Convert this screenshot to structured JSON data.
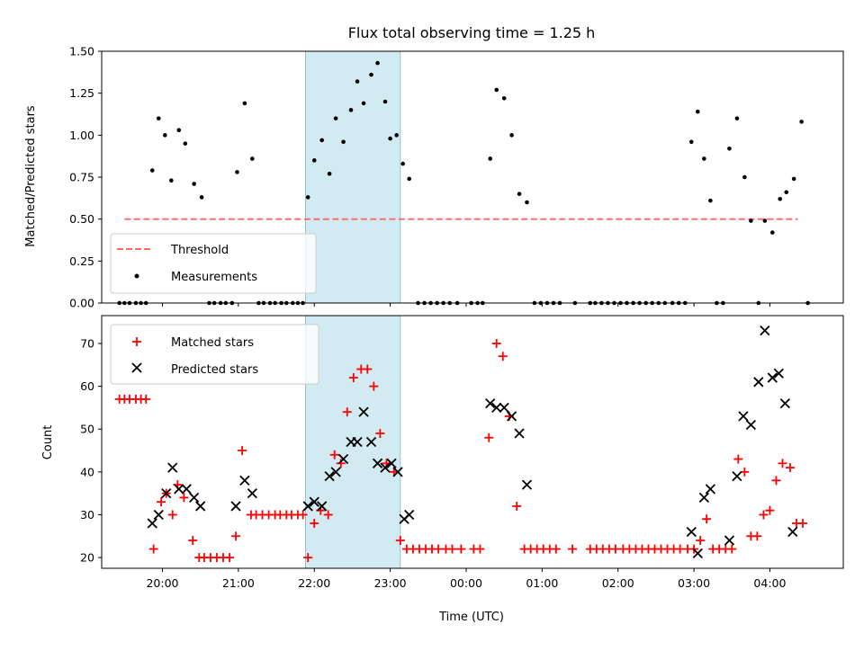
{
  "chart_data": [
    {
      "type": "scatter",
      "title": "Flux total observing time = 1.25 h",
      "ylabel": "Matched/Predicted stars",
      "ylim": [
        0,
        1.5
      ],
      "yticks": [
        "0.00",
        "0.25",
        "0.50",
        "0.75",
        "1.00",
        "1.25",
        "1.50"
      ],
      "xlim": [
        "19:12",
        "04:58"
      ],
      "highlight_span": {
        "from": "21:53",
        "to": "23:08",
        "color": "#add8e6"
      },
      "threshold": {
        "value": 0.5,
        "from": "19:30",
        "to": "04:22",
        "color": "#ff6666",
        "style": "dashed"
      },
      "legend": {
        "position": "lower-left",
        "entries": [
          "Threshold",
          "Measurements"
        ]
      },
      "series": [
        {
          "name": "Measurements",
          "marker": "dot",
          "color": "#000000",
          "points": [
            [
              "19:26",
              0
            ],
            [
              "19:30",
              0
            ],
            [
              "19:34",
              0
            ],
            [
              "19:39",
              0
            ],
            [
              "19:43",
              0
            ],
            [
              "19:47",
              0
            ],
            [
              "19:52",
              0.79
            ],
            [
              "19:57",
              1.1
            ],
            [
              "20:02",
              1.0
            ],
            [
              "20:07",
              0.73
            ],
            [
              "20:13",
              1.03
            ],
            [
              "20:18",
              0.95
            ],
            [
              "20:25",
              0.71
            ],
            [
              "20:31",
              0.63
            ],
            [
              "20:37",
              0
            ],
            [
              "20:41",
              0
            ],
            [
              "20:46",
              0
            ],
            [
              "20:50",
              0
            ],
            [
              "20:55",
              0
            ],
            [
              "20:59",
              0.78
            ],
            [
              "21:05",
              1.19
            ],
            [
              "21:11",
              0.86
            ],
            [
              "21:16",
              0
            ],
            [
              "21:20",
              0
            ],
            [
              "21:25",
              0
            ],
            [
              "21:29",
              0
            ],
            [
              "21:34",
              0
            ],
            [
              "21:38",
              0
            ],
            [
              "21:43",
              0
            ],
            [
              "21:47",
              0
            ],
            [
              "21:51",
              0
            ],
            [
              "21:55",
              0.63
            ],
            [
              "22:00",
              0.85
            ],
            [
              "22:06",
              0.97
            ],
            [
              "22:12",
              0.77
            ],
            [
              "22:17",
              1.1
            ],
            [
              "22:23",
              0.96
            ],
            [
              "22:29",
              1.15
            ],
            [
              "22:34",
              1.32
            ],
            [
              "22:39",
              1.19
            ],
            [
              "22:45",
              1.36
            ],
            [
              "22:50",
              1.43
            ],
            [
              "22:56",
              1.2
            ],
            [
              "23:00",
              0.98
            ],
            [
              "23:05",
              1.0
            ],
            [
              "23:10",
              0.83
            ],
            [
              "23:15",
              0.74
            ],
            [
              "23:22",
              0
            ],
            [
              "23:27",
              0
            ],
            [
              "23:32",
              0
            ],
            [
              "23:37",
              0
            ],
            [
              "23:42",
              0
            ],
            [
              "23:47",
              0
            ],
            [
              "23:53",
              0
            ],
            [
              "00:04",
              0
            ],
            [
              "00:09",
              0
            ],
            [
              "00:13",
              0
            ],
            [
              "00:19",
              0.86
            ],
            [
              "00:24",
              1.27
            ],
            [
              "00:30",
              1.22
            ],
            [
              "00:36",
              1.0
            ],
            [
              "00:42",
              0.65
            ],
            [
              "00:48",
              0.6
            ],
            [
              "00:54",
              0
            ],
            [
              "00:59",
              0
            ],
            [
              "01:04",
              0
            ],
            [
              "01:09",
              0
            ],
            [
              "01:14",
              0
            ],
            [
              "01:26",
              0
            ],
            [
              "01:38",
              0
            ],
            [
              "01:42",
              0
            ],
            [
              "01:47",
              0
            ],
            [
              "01:52",
              0
            ],
            [
              "01:57",
              0
            ],
            [
              "02:02",
              0
            ],
            [
              "02:07",
              0
            ],
            [
              "02:12",
              0
            ],
            [
              "02:17",
              0
            ],
            [
              "02:22",
              0
            ],
            [
              "02:27",
              0
            ],
            [
              "02:32",
              0
            ],
            [
              "02:37",
              0
            ],
            [
              "02:43",
              0
            ],
            [
              "02:48",
              0
            ],
            [
              "02:53",
              0
            ],
            [
              "02:58",
              0.96
            ],
            [
              "03:03",
              1.14
            ],
            [
              "03:08",
              0.86
            ],
            [
              "03:13",
              0.61
            ],
            [
              "03:18",
              0
            ],
            [
              "03:23",
              0
            ],
            [
              "03:28",
              0.92
            ],
            [
              "03:34",
              1.1
            ],
            [
              "03:40",
              0.75
            ],
            [
              "03:45",
              0.49
            ],
            [
              "03:51",
              0
            ],
            [
              "03:56",
              0.49
            ],
            [
              "04:02",
              0.42
            ],
            [
              "04:08",
              0.62
            ],
            [
              "04:13",
              0.66
            ],
            [
              "04:19",
              0.74
            ],
            [
              "04:25",
              1.08
            ],
            [
              "04:30",
              0
            ]
          ]
        }
      ]
    },
    {
      "type": "scatter",
      "xlabel": "Time (UTC)",
      "ylabel": "Count",
      "ylim": [
        17.5,
        76.5
      ],
      "yticks": [
        "20",
        "30",
        "40",
        "50",
        "60",
        "70"
      ],
      "xlim": [
        "19:12",
        "04:58"
      ],
      "xticks": [
        "20:00",
        "21:00",
        "22:00",
        "23:00",
        "00:00",
        "01:00",
        "02:00",
        "03:00",
        "04:00"
      ],
      "highlight_span": {
        "from": "21:53",
        "to": "23:08",
        "color": "#add8e6"
      },
      "legend": {
        "position": "top-left",
        "entries": [
          "Matched stars",
          "Predicted stars"
        ]
      },
      "series": [
        {
          "name": "Matched stars",
          "marker": "plus",
          "color": "#ff0000",
          "points": [
            [
              "19:26",
              57
            ],
            [
              "19:30",
              57
            ],
            [
              "19:34",
              57
            ],
            [
              "19:39",
              57
            ],
            [
              "19:43",
              57
            ],
            [
              "19:47",
              57
            ],
            [
              "19:53",
              22
            ],
            [
              "19:59",
              33
            ],
            [
              "20:03",
              35
            ],
            [
              "20:08",
              30
            ],
            [
              "20:12",
              37
            ],
            [
              "20:17",
              34
            ],
            [
              "20:24",
              24
            ],
            [
              "20:29",
              20
            ],
            [
              "20:33",
              20
            ],
            [
              "20:38",
              20
            ],
            [
              "20:43",
              20
            ],
            [
              "20:48",
              20
            ],
            [
              "20:53",
              20
            ],
            [
              "20:58",
              25
            ],
            [
              "21:03",
              45
            ],
            [
              "21:10",
              30
            ],
            [
              "21:14",
              30
            ],
            [
              "21:19",
              30
            ],
            [
              "21:24",
              30
            ],
            [
              "21:29",
              30
            ],
            [
              "21:33",
              30
            ],
            [
              "21:38",
              30
            ],
            [
              "21:42",
              30
            ],
            [
              "21:47",
              30
            ],
            [
              "21:51",
              30
            ],
            [
              "21:55",
              20
            ],
            [
              "22:00",
              28
            ],
            [
              "22:05",
              31
            ],
            [
              "22:11",
              30
            ],
            [
              "22:16",
              44
            ],
            [
              "22:21",
              42
            ],
            [
              "22:26",
              54
            ],
            [
              "22:31",
              62
            ],
            [
              "22:37",
              64
            ],
            [
              "22:42",
              64
            ],
            [
              "22:47",
              60
            ],
            [
              "22:52",
              49
            ],
            [
              "22:57",
              42
            ],
            [
              "23:03",
              40
            ],
            [
              "23:08",
              24
            ],
            [
              "23:13",
              22
            ],
            [
              "23:18",
              22
            ],
            [
              "23:23",
              22
            ],
            [
              "23:28",
              22
            ],
            [
              "23:33",
              22
            ],
            [
              "23:38",
              22
            ],
            [
              "23:44",
              22
            ],
            [
              "23:49",
              22
            ],
            [
              "23:56",
              22
            ],
            [
              "00:06",
              22
            ],
            [
              "00:11",
              22
            ],
            [
              "00:18",
              48
            ],
            [
              "00:24",
              70
            ],
            [
              "00:29",
              67
            ],
            [
              "00:34",
              53
            ],
            [
              "00:40",
              32
            ],
            [
              "00:46",
              22
            ],
            [
              "00:51",
              22
            ],
            [
              "00:56",
              22
            ],
            [
              "01:01",
              22
            ],
            [
              "01:06",
              22
            ],
            [
              "01:11",
              22
            ],
            [
              "01:24",
              22
            ],
            [
              "01:38",
              22
            ],
            [
              "01:43",
              22
            ],
            [
              "01:48",
              22
            ],
            [
              "01:53",
              22
            ],
            [
              "01:58",
              22
            ],
            [
              "02:04",
              22
            ],
            [
              "02:09",
              22
            ],
            [
              "02:14",
              22
            ],
            [
              "02:19",
              22
            ],
            [
              "02:24",
              22
            ],
            [
              "02:29",
              22
            ],
            [
              "02:34",
              22
            ],
            [
              "02:39",
              22
            ],
            [
              "02:44",
              22
            ],
            [
              "02:49",
              22
            ],
            [
              "02:55",
              22
            ],
            [
              "03:00",
              22
            ],
            [
              "03:05",
              24
            ],
            [
              "03:10",
              29
            ],
            [
              "03:15",
              22
            ],
            [
              "03:20",
              22
            ],
            [
              "03:25",
              22
            ],
            [
              "03:30",
              22
            ],
            [
              "03:35",
              43
            ],
            [
              "03:40",
              40
            ],
            [
              "03:45",
              25
            ],
            [
              "03:50",
              25
            ],
            [
              "03:55",
              30
            ],
            [
              "04:00",
              31
            ],
            [
              "04:05",
              38
            ],
            [
              "04:10",
              42
            ],
            [
              "04:16",
              41
            ],
            [
              "04:21",
              28
            ],
            [
              "04:26",
              28
            ]
          ]
        },
        {
          "name": "Predicted stars",
          "marker": "x",
          "color": "#000000",
          "points": [
            [
              "19:52",
              28
            ],
            [
              "19:57",
              30
            ],
            [
              "20:03",
              35
            ],
            [
              "20:08",
              41
            ],
            [
              "20:13",
              36
            ],
            [
              "20:19",
              36
            ],
            [
              "20:25",
              34
            ],
            [
              "20:30",
              32
            ],
            [
              "20:58",
              32
            ],
            [
              "21:05",
              38
            ],
            [
              "21:11",
              35
            ],
            [
              "21:55",
              32
            ],
            [
              "22:00",
              33
            ],
            [
              "22:06",
              32
            ],
            [
              "22:12",
              39
            ],
            [
              "22:17",
              40
            ],
            [
              "22:23",
              43
            ],
            [
              "22:29",
              47
            ],
            [
              "22:34",
              47
            ],
            [
              "22:39",
              54
            ],
            [
              "22:45",
              47
            ],
            [
              "22:50",
              42
            ],
            [
              "22:56",
              41
            ],
            [
              "23:01",
              42
            ],
            [
              "23:06",
              40
            ],
            [
              "23:11",
              29
            ],
            [
              "23:15",
              30
            ],
            [
              "00:19",
              56
            ],
            [
              "00:24",
              55
            ],
            [
              "00:30",
              55
            ],
            [
              "00:36",
              53
            ],
            [
              "00:42",
              49
            ],
            [
              "00:48",
              37
            ],
            [
              "02:58",
              26
            ],
            [
              "03:03",
              21
            ],
            [
              "03:08",
              34
            ],
            [
              "03:13",
              36
            ],
            [
              "03:28",
              24
            ],
            [
              "03:34",
              39
            ],
            [
              "03:39",
              53
            ],
            [
              "03:45",
              51
            ],
            [
              "03:51",
              61
            ],
            [
              "03:56",
              73
            ],
            [
              "04:02",
              62
            ],
            [
              "04:07",
              63
            ],
            [
              "04:12",
              56
            ],
            [
              "04:18",
              26
            ]
          ]
        }
      ]
    }
  ]
}
